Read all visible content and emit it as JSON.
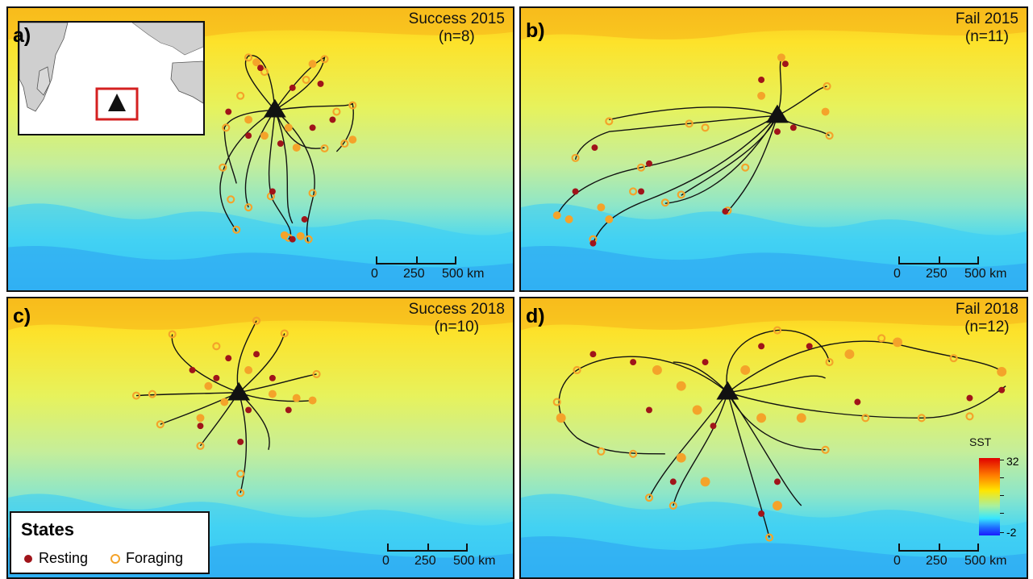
{
  "panels": [
    {
      "label": "a)",
      "title_line1": "Success 2015",
      "title_line2": "(n=8)"
    },
    {
      "label": "b)",
      "title_line1": "Fail 2015",
      "title_line2": "(n=11)"
    },
    {
      "label": "c)",
      "title_line1": "Success 2018",
      "title_line2": "(n=10)"
    },
    {
      "label": "d)",
      "title_line1": "Fail 2018",
      "title_line2": "(n=12)"
    }
  ],
  "scale_bar": {
    "t0": "0",
    "t1": "250",
    "t2": "500 km"
  },
  "legend": {
    "title": "States",
    "resting_label": "Resting",
    "foraging_label": "Foraging",
    "resting_color": "#a0141a",
    "foraging_color": "#f4a32a"
  },
  "sst_colorbar": {
    "title": "SST",
    "max": "32",
    "min": "-2"
  },
  "colors": {
    "warm": "#ffd21a",
    "mid": "#d6f08a",
    "cool": "#36d6ff",
    "track": "#111111"
  },
  "icons": [
    "colony-triangle-icon",
    "inset-locator-box"
  ]
}
